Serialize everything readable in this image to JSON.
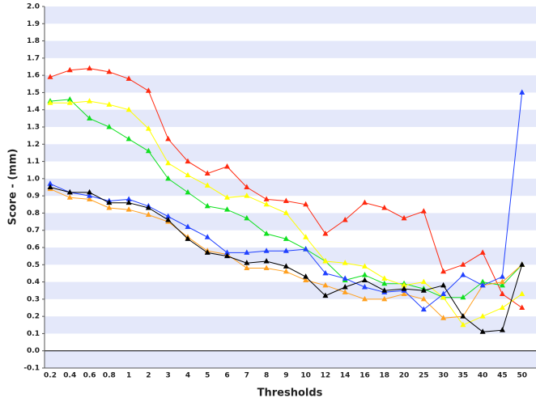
{
  "chart_data": {
    "type": "line",
    "x_label": "Thresholds",
    "y_label": "Score - (mm)",
    "categories": [
      "0.2",
      "0.4",
      "0.6",
      "0.8",
      "1",
      "2",
      "3",
      "4",
      "5",
      "6",
      "7",
      "8",
      "9",
      "10",
      "12",
      "14",
      "16",
      "18",
      "20",
      "25",
      "30",
      "35",
      "40",
      "45",
      "50"
    ],
    "series": [
      {
        "color": "#ff2a10",
        "values": [
          1.59,
          1.63,
          1.64,
          1.62,
          1.58,
          1.51,
          1.23,
          1.1,
          1.03,
          1.07,
          0.95,
          0.88,
          0.87,
          0.85,
          0.68,
          0.76,
          0.86,
          0.83,
          0.77,
          0.81,
          0.46,
          0.5,
          0.57,
          0.33,
          0.25
        ]
      },
      {
        "color": "#10e020",
        "values": [
          1.45,
          1.46,
          1.35,
          1.3,
          1.23,
          1.16,
          1.0,
          0.92,
          0.84,
          0.82,
          0.77,
          0.68,
          0.65,
          0.59,
          0.52,
          0.41,
          0.44,
          0.39,
          0.39,
          0.36,
          0.31,
          0.31,
          0.4,
          0.38,
          0.5
        ]
      },
      {
        "color": "#ffff00",
        "values": [
          1.44,
          1.44,
          1.45,
          1.43,
          1.4,
          1.29,
          1.09,
          1.02,
          0.96,
          0.89,
          0.9,
          0.85,
          0.8,
          0.66,
          0.52,
          0.51,
          0.49,
          0.42,
          0.38,
          0.4,
          0.31,
          0.15,
          0.2,
          0.25,
          0.33
        ]
      },
      {
        "color": "#ffa020",
        "values": [
          0.94,
          0.89,
          0.88,
          0.83,
          0.82,
          0.79,
          0.75,
          0.66,
          0.58,
          0.56,
          0.48,
          0.48,
          0.46,
          0.41,
          0.38,
          0.34,
          0.3,
          0.3,
          0.33,
          0.3,
          0.19,
          0.2,
          0.38,
          0.4,
          0.5
        ]
      },
      {
        "color": "#2040ff",
        "values": [
          0.97,
          0.92,
          0.9,
          0.87,
          0.88,
          0.84,
          0.78,
          0.72,
          0.66,
          0.57,
          0.57,
          0.58,
          0.58,
          0.59,
          0.45,
          0.42,
          0.37,
          0.34,
          0.35,
          0.24,
          0.33,
          0.44,
          0.38,
          0.43,
          1.5
        ]
      },
      {
        "color": "#000000",
        "values": [
          0.95,
          0.92,
          0.92,
          0.86,
          0.86,
          0.83,
          0.76,
          0.65,
          0.57,
          0.55,
          0.51,
          0.52,
          0.49,
          0.43,
          0.32,
          0.37,
          0.41,
          0.35,
          0.36,
          0.35,
          0.38,
          0.2,
          0.11,
          0.12,
          0.5
        ]
      }
    ],
    "ylim": [
      -0.1,
      2.0
    ],
    "yticks": [
      -0.1,
      {
        "value": 0,
        "label": "0.0"
      },
      0.1,
      0.2,
      0.3,
      0.4,
      0.5,
      0.6,
      0.7,
      0.8,
      0.9,
      {
        "value": 1,
        "label": "1.0"
      },
      1.1,
      1.2,
      1.3,
      1.4,
      1.5,
      1.6,
      1.7,
      1.8,
      1.9,
      {
        "value": 2,
        "label": "2.0"
      }
    ],
    "bands": true
  }
}
